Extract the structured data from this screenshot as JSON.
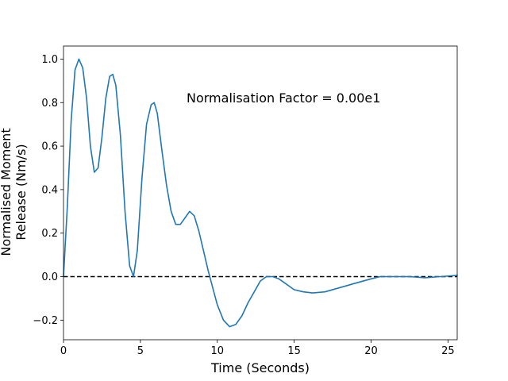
{
  "chart_data": {
    "type": "line",
    "xlabel": "Time (Seconds)",
    "ylabel_lines": [
      "Normalised Moment",
      "Release (Nm/s)"
    ],
    "xlim": [
      0,
      25.6
    ],
    "ylim": [
      -0.29,
      1.06
    ],
    "xticks": [
      0,
      5,
      10,
      15,
      20,
      25
    ],
    "yticks": [
      -0.2,
      0.0,
      0.2,
      0.4,
      0.6,
      0.8,
      1.0
    ],
    "ytick_labels": [
      "−0.2",
      "0.0",
      "0.2",
      "0.4",
      "0.6",
      "0.8",
      "1.0"
    ],
    "grid": false,
    "annotation": {
      "text": "Normalisation Factor = 0.00e1",
      "x": 8.0,
      "y": 0.8
    },
    "reference_line": {
      "y": 0.0,
      "style": "dashed",
      "color": "#000000"
    },
    "series": [
      {
        "color": "#1f77b4",
        "points": [
          [
            0.0,
            0.0
          ],
          [
            0.25,
            0.32
          ],
          [
            0.5,
            0.72
          ],
          [
            0.75,
            0.95
          ],
          [
            1.0,
            1.0
          ],
          [
            1.25,
            0.96
          ],
          [
            1.5,
            0.82
          ],
          [
            1.75,
            0.6
          ],
          [
            2.0,
            0.48
          ],
          [
            2.25,
            0.5
          ],
          [
            2.5,
            0.64
          ],
          [
            2.75,
            0.82
          ],
          [
            3.0,
            0.92
          ],
          [
            3.2,
            0.93
          ],
          [
            3.4,
            0.88
          ],
          [
            3.7,
            0.65
          ],
          [
            4.0,
            0.3
          ],
          [
            4.3,
            0.05
          ],
          [
            4.55,
            0.0
          ],
          [
            4.8,
            0.12
          ],
          [
            5.1,
            0.45
          ],
          [
            5.4,
            0.7
          ],
          [
            5.7,
            0.79
          ],
          [
            5.9,
            0.8
          ],
          [
            6.1,
            0.75
          ],
          [
            6.4,
            0.58
          ],
          [
            6.7,
            0.42
          ],
          [
            7.0,
            0.3
          ],
          [
            7.3,
            0.24
          ],
          [
            7.6,
            0.24
          ],
          [
            7.9,
            0.27
          ],
          [
            8.2,
            0.3
          ],
          [
            8.5,
            0.28
          ],
          [
            8.8,
            0.21
          ],
          [
            9.1,
            0.12
          ],
          [
            9.4,
            0.03
          ],
          [
            9.7,
            -0.05
          ],
          [
            10.0,
            -0.13
          ],
          [
            10.4,
            -0.2
          ],
          [
            10.8,
            -0.23
          ],
          [
            11.2,
            -0.22
          ],
          [
            11.6,
            -0.18
          ],
          [
            12.0,
            -0.12
          ],
          [
            12.4,
            -0.07
          ],
          [
            12.8,
            -0.02
          ],
          [
            13.2,
            0.0
          ],
          [
            13.6,
            0.0
          ],
          [
            14.0,
            -0.01
          ],
          [
            14.4,
            -0.03
          ],
          [
            15.0,
            -0.06
          ],
          [
            15.6,
            -0.07
          ],
          [
            16.2,
            -0.075
          ],
          [
            17.0,
            -0.07
          ],
          [
            18.0,
            -0.05
          ],
          [
            19.0,
            -0.03
          ],
          [
            20.0,
            -0.01
          ],
          [
            20.6,
            0.0
          ],
          [
            21.5,
            0.0
          ],
          [
            22.5,
            0.0
          ],
          [
            23.5,
            -0.005
          ],
          [
            24.5,
            0.0
          ],
          [
            25.6,
            0.006
          ]
        ]
      }
    ]
  }
}
